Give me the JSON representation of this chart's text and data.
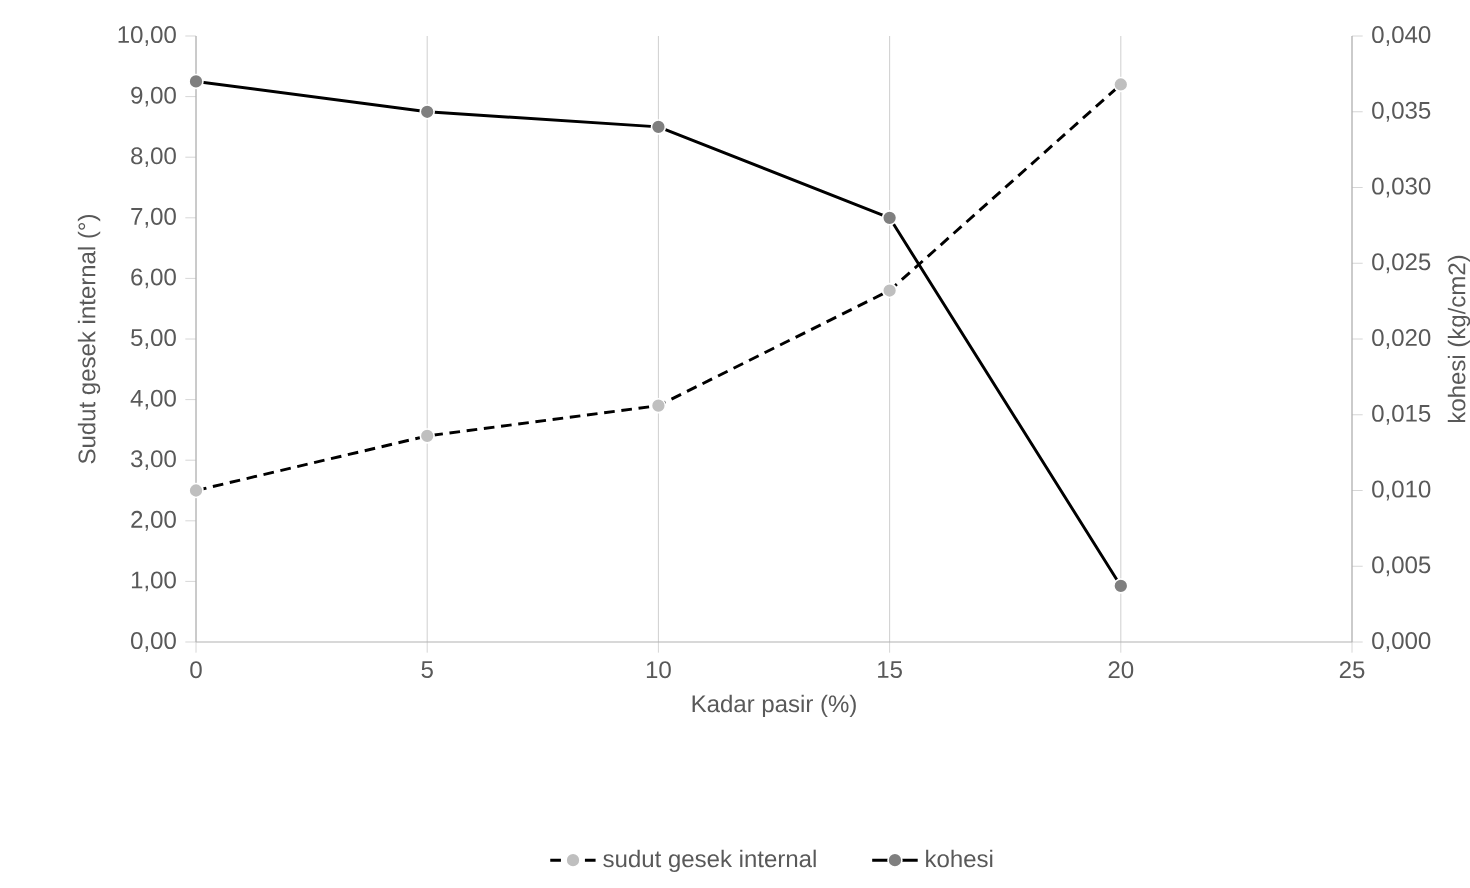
{
  "chart_data": {
    "type": "line",
    "xlabel": "Kadar pasir (%)",
    "ylabel": "Sudut gesek internal (°)",
    "y2label": "kohesi (kg/cm2)",
    "x": [
      0,
      5,
      10,
      15,
      20
    ],
    "xlim": [
      0,
      25
    ],
    "xticks": [
      0,
      5,
      10,
      15,
      20,
      25
    ],
    "ylim": [
      0,
      10
    ],
    "yticks": [
      {
        "value": 0,
        "label": "0,00"
      },
      {
        "value": 1,
        "label": "1,00"
      },
      {
        "value": 2,
        "label": "2,00"
      },
      {
        "value": 3,
        "label": "3,00"
      },
      {
        "value": 4,
        "label": "4,00"
      },
      {
        "value": 5,
        "label": "5,00"
      },
      {
        "value": 6,
        "label": "6,00"
      },
      {
        "value": 7,
        "label": "7,00"
      },
      {
        "value": 8,
        "label": "8,00"
      },
      {
        "value": 9,
        "label": "9,00"
      },
      {
        "value": 10,
        "label": "10,00"
      }
    ],
    "y2lim": [
      0,
      0.04
    ],
    "y2ticks": [
      {
        "value": 0,
        "label": "0,000"
      },
      {
        "value": 0.005,
        "label": "0,005"
      },
      {
        "value": 0.01,
        "label": "0,010"
      },
      {
        "value": 0.015,
        "label": "0,015"
      },
      {
        "value": 0.02,
        "label": "0,020"
      },
      {
        "value": 0.025,
        "label": "0,025"
      },
      {
        "value": 0.03,
        "label": "0,030"
      },
      {
        "value": 0.035,
        "label": "0,035"
      },
      {
        "value": 0.04,
        "label": "0,040"
      }
    ],
    "grid": "x",
    "legend": "bottom",
    "marker": "circle",
    "series": [
      {
        "name": "sudut gesek internal",
        "color": "#000000",
        "line_style": "dashed",
        "values": [
          2.5,
          3.4,
          3.9,
          5.8,
          9.2
        ]
      },
      {
        "name": "kohesi",
        "color": "#000000",
        "axis": "y2",
        "line_style": "solid",
        "values": [
          0.037,
          0.035,
          0.034,
          0.028,
          0.0037
        ]
      }
    ]
  }
}
